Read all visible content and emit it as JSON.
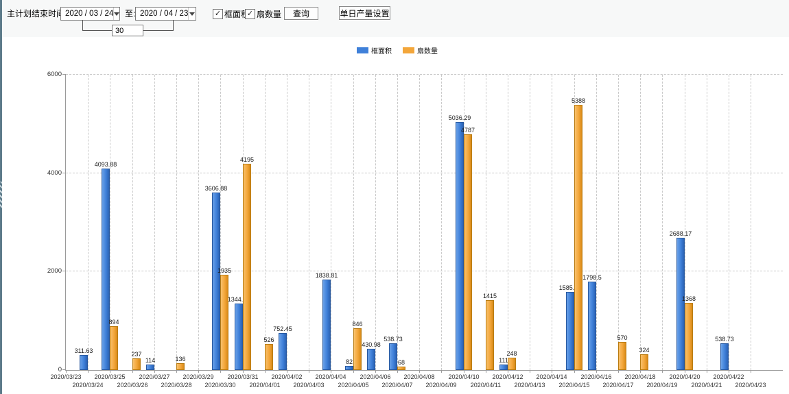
{
  "toolbar": {
    "label_main": "主计划结束时间:",
    "date_from": "2020 / 03 / 24",
    "label_to": "至:",
    "date_to": "2020 / 04 / 23",
    "interval_value": "30",
    "checkbox_frame_area_label": "框面积",
    "checkbox_fan_count_label": "扇数量",
    "checkbox_frame_area_checked": true,
    "checkbox_fan_count_checked": true,
    "query_button": "查询",
    "daily_output_button": "单日产量设置"
  },
  "icons": {
    "dropdown_arrow": "triangle-down",
    "checkbox_check": "✓",
    "splitter_grip": "hatch"
  },
  "legend": [
    {
      "label": "框面积",
      "color": "#3F80D9"
    },
    {
      "label": "扇数量",
      "color": "#F3A63A"
    }
  ],
  "chart_data": {
    "type": "bar",
    "title": "",
    "xlabel": "",
    "ylabel": "",
    "ylim": [
      0,
      6000
    ],
    "yticks": [
      0,
      2000,
      4000,
      6000
    ],
    "grid": "dashed-both-axes",
    "legend_position": "top-center",
    "categories": [
      "2020/03/23",
      "2020/03/24",
      "2020/03/25",
      "2020/03/26",
      "2020/03/27",
      "2020/03/28",
      "2020/03/29",
      "2020/03/30",
      "2020/03/31",
      "2020/04/01",
      "2020/04/02",
      "2020/04/03",
      "2020/04/04",
      "2020/04/05",
      "2020/04/06",
      "2020/04/07",
      "2020/04/08",
      "2020/04/09",
      "2020/04/10",
      "2020/04/11",
      "2020/04/12",
      "2020/04/13",
      "2020/04/14",
      "2020/04/15",
      "2020/04/16",
      "2020/04/17",
      "2020/04/18",
      "2020/04/19",
      "2020/04/20",
      "2020/04/21",
      "2020/04/22",
      "2020/04/23"
    ],
    "series": [
      {
        "name": "框面积",
        "color": "#3F80D9",
        "color_light": "#6AA1E8",
        "color_dark": "#2B62B4",
        "border": "#27589F",
        "values": [
          null,
          311.63,
          4093.88,
          null,
          114,
          null,
          null,
          3606.88,
          1344.95,
          null,
          752.45,
          null,
          1838.81,
          82,
          430.98,
          538.73,
          null,
          null,
          5036.29,
          null,
          111,
          null,
          null,
          1585.96,
          1798.5,
          null,
          null,
          null,
          2688.17,
          null,
          538.73,
          null
        ]
      },
      {
        "name": "扇数量",
        "color": "#F3A63A",
        "color_light": "#F8C06A",
        "color_dark": "#D88A18",
        "border": "#B97C12",
        "values": [
          null,
          null,
          894,
          237,
          null,
          136,
          null,
          1935,
          4195,
          526,
          null,
          null,
          null,
          846,
          null,
          68,
          null,
          null,
          4787,
          1415,
          248,
          null,
          null,
          5388,
          null,
          570,
          324,
          null,
          1368,
          null,
          null,
          null
        ]
      }
    ]
  }
}
